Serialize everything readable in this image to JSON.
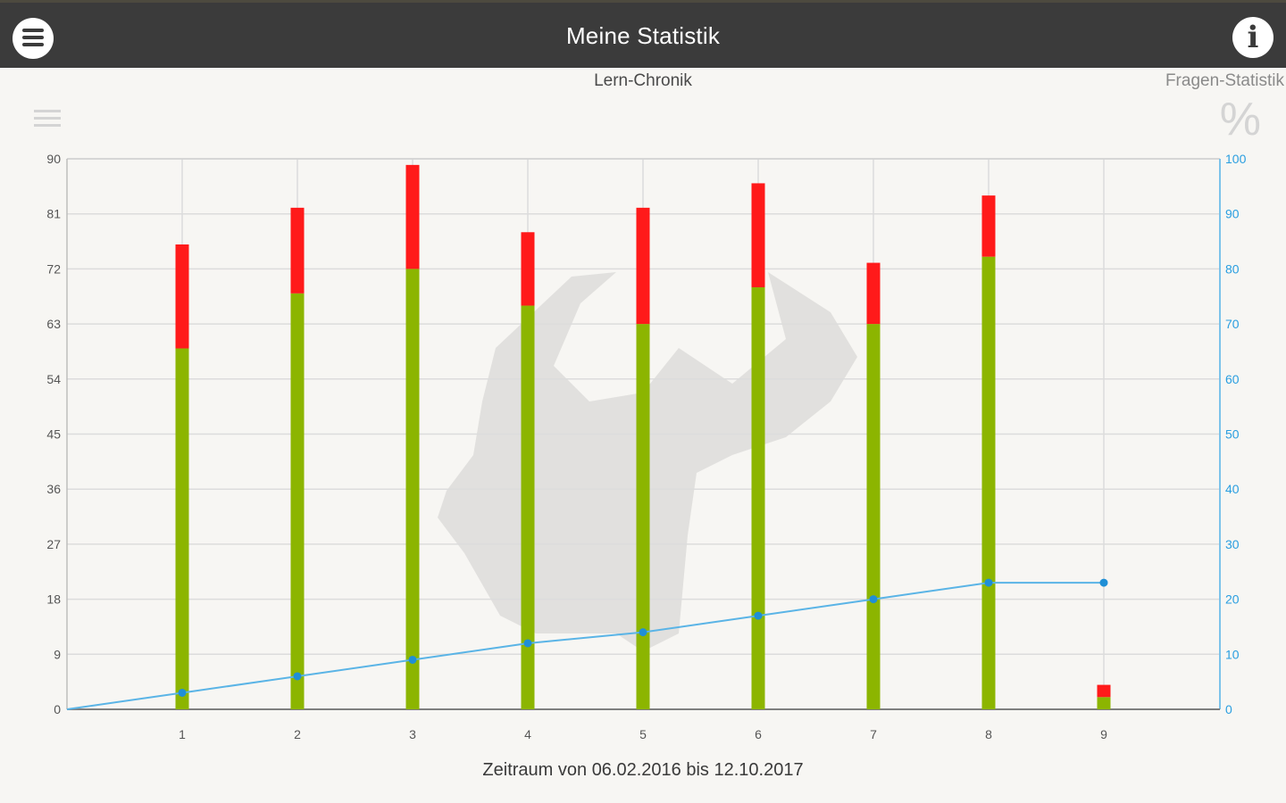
{
  "header": {
    "title": "Meine Statistik",
    "menu_icon": "hamburger-menu-icon",
    "info_icon": "info-icon"
  },
  "tabs": {
    "chronik": "Lern-Chronik",
    "fragen": "Fragen-Statistik"
  },
  "icons": {
    "left": "list-icon",
    "right": "percent-icon",
    "percent_glyph": "%"
  },
  "caption": "Zeitraum von 06.02.2016 bis 12.10.2017",
  "chart_data": {
    "type": "bar",
    "stacked": true,
    "categories": [
      "1",
      "2",
      "3",
      "4",
      "5",
      "6",
      "7",
      "8",
      "9"
    ],
    "series": [
      {
        "values": [
          59,
          68,
          72,
          66,
          63,
          69,
          63,
          74,
          2
        ],
        "color": "#8cb500"
      },
      {
        "values": [
          17,
          14,
          17,
          12,
          19,
          17,
          10,
          10,
          2
        ],
        "color": "#ff1a1a"
      }
    ],
    "line_series": {
      "axis": "right",
      "color": "#3fa6e0",
      "x": [
        0,
        1,
        2,
        3,
        4,
        5,
        6,
        7,
        8,
        9
      ],
      "values": [
        0,
        3,
        6,
        9,
        12,
        14,
        17,
        20,
        23,
        23
      ]
    },
    "y_left": {
      "ylim": [
        0,
        90
      ],
      "ticks": [
        0,
        9,
        18,
        27,
        36,
        45,
        54,
        63,
        72,
        81,
        90
      ]
    },
    "y_right": {
      "ylim": [
        0,
        100
      ],
      "ticks": [
        0,
        10,
        20,
        30,
        40,
        50,
        60,
        70,
        80,
        90,
        100
      ],
      "color": "#2a9ee0"
    },
    "grid": true,
    "xlabel": "",
    "ylabel": ""
  }
}
